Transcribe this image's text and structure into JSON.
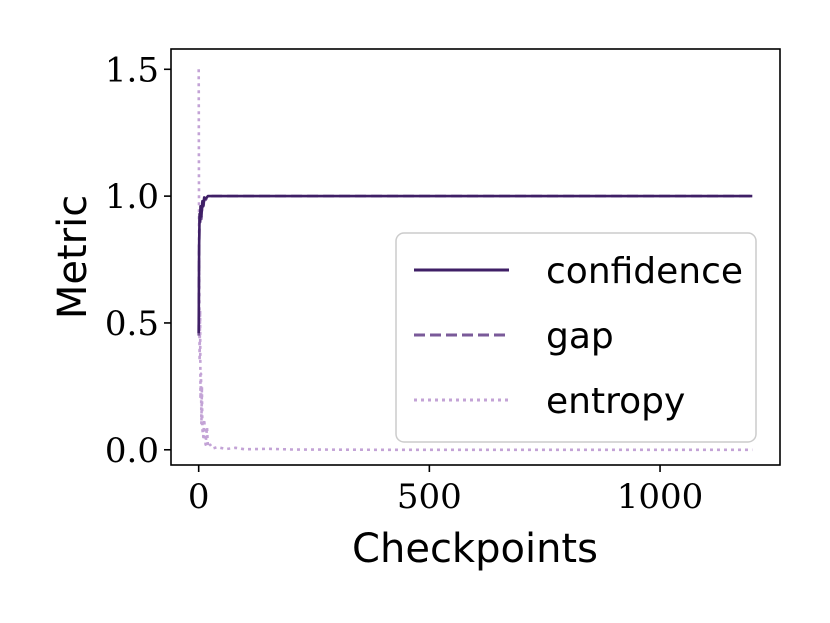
{
  "chart_data": {
    "type": "line",
    "xlabel": "Checkpoints",
    "ylabel": "Metric",
    "xlim": [
      -60,
      1260
    ],
    "ylim": [
      -0.06,
      1.58
    ],
    "xticks": [
      0,
      500,
      1000
    ],
    "yticks": [
      0.0,
      0.5,
      1.0,
      1.5
    ],
    "xtick_labels": [
      "0",
      "500",
      "1000"
    ],
    "ytick_labels": [
      "0.0",
      "0.5",
      "1.0",
      "1.5"
    ],
    "grid": false,
    "legend_position": "center-right",
    "series": [
      {
        "name": "confidence",
        "style": "solid",
        "color": "#3f1f66",
        "x": [
          0,
          1,
          2,
          3,
          4,
          6,
          8,
          10,
          12,
          15,
          20,
          30,
          50,
          100,
          300,
          600,
          900,
          1200
        ],
        "y": [
          0.46,
          0.8,
          0.93,
          0.9,
          0.96,
          0.92,
          0.98,
          0.96,
          0.995,
          0.99,
          1.0,
          1.0,
          1.0,
          1.0,
          1.0,
          1.0,
          1.0,
          1.0
        ]
      },
      {
        "name": "gap",
        "style": "dashed",
        "color": "#7a5a99",
        "x": [
          0,
          1,
          2,
          3,
          4,
          6,
          8,
          10,
          12,
          15,
          20,
          30,
          50,
          100,
          300,
          600,
          900,
          1200
        ],
        "y": [
          0.45,
          0.78,
          0.92,
          0.89,
          0.95,
          0.91,
          0.97,
          0.95,
          0.99,
          0.985,
          0.998,
          1.0,
          1.0,
          1.0,
          1.0,
          1.0,
          1.0,
          1.0
        ]
      },
      {
        "name": "entropy",
        "style": "dotted",
        "color": "#c3a3d6",
        "x": [
          0,
          1,
          2,
          3,
          4,
          5,
          6,
          7,
          8,
          10,
          12,
          15,
          18,
          20,
          25,
          30,
          40,
          60,
          80,
          100,
          150,
          200,
          400,
          700,
          1000,
          1200
        ],
        "y": [
          1.5,
          0.8,
          0.35,
          0.55,
          0.2,
          0.3,
          0.1,
          0.25,
          0.08,
          0.05,
          0.12,
          0.02,
          0.09,
          0.01,
          0.02,
          0.005,
          0.01,
          0.003,
          0.008,
          0.002,
          0.004,
          0.001,
          0.0,
          0.0,
          0.0,
          0.0
        ]
      }
    ]
  }
}
